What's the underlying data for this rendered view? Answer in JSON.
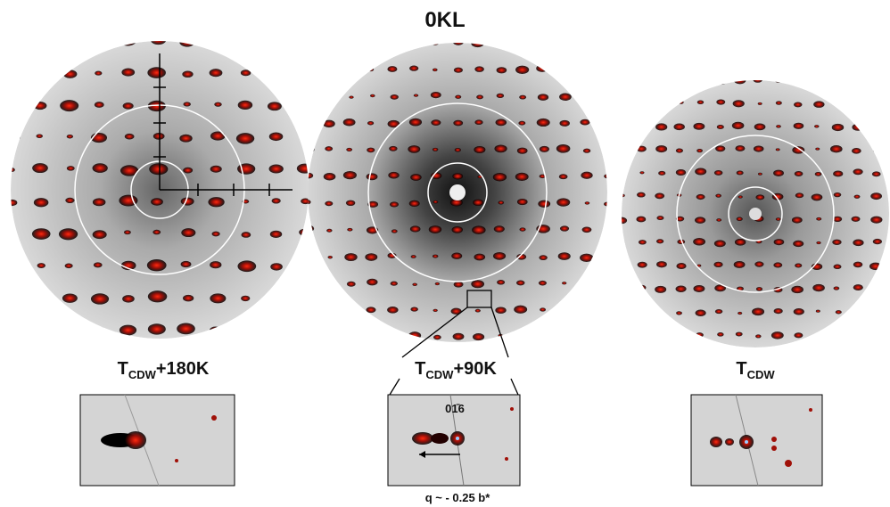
{
  "title": "0KL",
  "panels": [
    {
      "label": {
        "main": "T",
        "sub": "CDW",
        "suffix": "+180K"
      }
    },
    {
      "label": {
        "main": "T",
        "sub": "CDW",
        "suffix": "+90K"
      },
      "inset_label": "01̄6",
      "inset_note": "q ~ - 0.25 b*"
    },
    {
      "label": {
        "main": "T",
        "sub": "CDW"
      }
    }
  ]
}
